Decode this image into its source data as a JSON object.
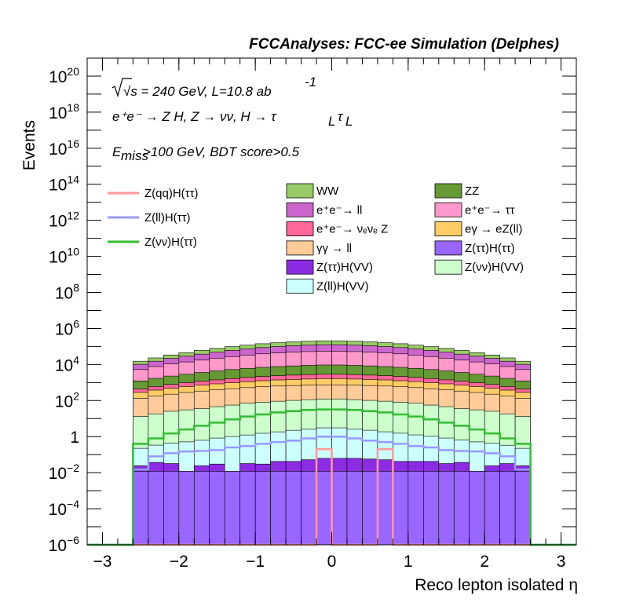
{
  "chart_data": {
    "type": "histogram",
    "title": "FCCAnalyses: FCC-ee Simulation (Delphes)",
    "annotations": {
      "energy_lumi": "√s = 240 GeV, L=10.8 ab",
      "lumi_exponent": "-1",
      "process": "e⁺e⁻ → Z H, Z → νν, H → τ",
      "tau_subscript": "L",
      "selection": "E",
      "selection_subscript": "miss",
      "selection_rest": ">100 GeV, BDT score>0.5"
    },
    "xlabel": "Reco lepton isolated η",
    "ylabel": "Events",
    "xlim": [
      -3.2,
      3.2
    ],
    "ylim": [
      1e-06,
      1e+21
    ],
    "log_y": true,
    "x_ticks": [
      -3,
      -2,
      -1,
      0,
      1,
      2,
      3
    ],
    "x_tick_labels": [
      "−3",
      "−2",
      "−1",
      "0",
      "1",
      "2",
      "3"
    ],
    "y_ticks": [
      {
        "value": 1e-06,
        "base": "10",
        "exp": "−6"
      },
      {
        "value": 0.0001,
        "base": "10",
        "exp": "−4"
      },
      {
        "value": 0.01,
        "base": "10",
        "exp": "−2"
      },
      {
        "value": 1,
        "base": "1",
        "exp": ""
      },
      {
        "value": 100.0,
        "base": "10",
        "exp": "2"
      },
      {
        "value": 10000.0,
        "base": "10",
        "exp": "4"
      },
      {
        "value": 1000000.0,
        "base": "10",
        "exp": "6"
      },
      {
        "value": 100000000.0,
        "base": "10",
        "exp": "8"
      },
      {
        "value": 10000000000.0,
        "base": "10",
        "exp": "10"
      },
      {
        "value": 1000000000000.0,
        "base": "10",
        "exp": "12"
      },
      {
        "value": 100000000000000.0,
        "base": "10",
        "exp": "14"
      },
      {
        "value": 1e+16,
        "base": "10",
        "exp": "16"
      },
      {
        "value": 1e+18,
        "base": "10",
        "exp": "18"
      },
      {
        "value": 1e+20,
        "base": "10",
        "exp": "20"
      }
    ],
    "bins": {
      "low": -2.6,
      "high": 2.6,
      "count": 26
    },
    "stack": [
      {
        "name": "Z(ττ)H(ττ)",
        "color": "#9966ff",
        "values": [
          0.012,
          0.012,
          0.012,
          0.012,
          0.012,
          0.012,
          0.012,
          0.012,
          0.012,
          0.012,
          0.012,
          0.012,
          0.012,
          0.012,
          0.012,
          0.012,
          0.012,
          0.012,
          0.012,
          0.012,
          0.012,
          0.012,
          0.012,
          0.012,
          0.012,
          0.012
        ]
      },
      {
        "name": "Z(ττ)H(VV)",
        "color": "#8b2be2",
        "values": [
          0.012,
          0.025,
          0.02,
          0.0,
          0.012,
          0.018,
          0.0,
          0.02,
          0.018,
          0.03,
          0.03,
          0.04,
          0.05,
          0.05,
          0.05,
          0.045,
          0.04,
          0.03,
          0.03,
          0.03,
          0.02,
          0.025,
          0.0,
          0.012,
          0.02,
          0.012
        ]
      },
      {
        "name": "Z(ll)H(VV)",
        "color": "#ccffff",
        "values": [
          0.2,
          0.3,
          0.4,
          0.5,
          0.6,
          0.8,
          1.0,
          1.2,
          1.5,
          1.8,
          2.2,
          2.5,
          3.0,
          3.0,
          2.5,
          2.2,
          1.8,
          1.5,
          1.2,
          1.0,
          0.8,
          0.6,
          0.5,
          0.4,
          0.3,
          0.2
        ]
      },
      {
        "name": "Z(νν)H(VV)",
        "color": "#ccffcc",
        "values": [
          13,
          18,
          25,
          30,
          35,
          45,
          55,
          70,
          80,
          90,
          100,
          110,
          120,
          120,
          110,
          100,
          90,
          80,
          70,
          55,
          45,
          35,
          30,
          25,
          18,
          13
        ]
      },
      {
        "name": "γγ → ll",
        "color": "#ffcc99",
        "values": [
          120,
          160,
          200,
          250,
          300,
          350,
          400,
          450,
          500,
          550,
          580,
          600,
          620,
          620,
          600,
          580,
          550,
          500,
          450,
          400,
          350,
          300,
          250,
          200,
          160,
          120
        ]
      },
      {
        "name": "eγ → eZ(ll)",
        "color": "#ffcc66",
        "values": [
          150,
          200,
          260,
          320,
          380,
          450,
          520,
          600,
          680,
          750,
          800,
          850,
          900,
          900,
          850,
          800,
          750,
          680,
          600,
          520,
          450,
          380,
          320,
          260,
          200,
          150
        ]
      },
      {
        "name": "e⁺e⁻→ νₑνₑ Z",
        "color": "#ff6699",
        "values": [
          150,
          220,
          300,
          380,
          460,
          560,
          680,
          800,
          900,
          1000,
          1100,
          1200,
          1250,
          1250,
          1200,
          1100,
          1000,
          900,
          800,
          680,
          560,
          460,
          380,
          300,
          220,
          150
        ]
      },
      {
        "name": "ZZ",
        "color": "#669933",
        "values": [
          800,
          1100,
          1500,
          1900,
          2400,
          3000,
          3600,
          4200,
          4800,
          5300,
          5800,
          6200,
          6500,
          6500,
          6200,
          5800,
          5300,
          4800,
          4200,
          3600,
          3000,
          2400,
          1900,
          1500,
          1100,
          800
        ]
      },
      {
        "name": "e⁺e⁻→ ττ",
        "color": "#ff99cc",
        "values": [
          4000,
          6000,
          8500,
          11000,
          14000,
          18000,
          22000,
          27000,
          32000,
          36000,
          40000,
          43000,
          45000,
          45000,
          43000,
          40000,
          36000,
          32000,
          27000,
          22000,
          18000,
          14000,
          11000,
          8500,
          6000,
          4000
        ]
      },
      {
        "name": "e⁺e⁻→ ll",
        "color": "#cc66cc",
        "values": [
          5000,
          7500,
          11000,
          15000,
          20000,
          26000,
          33000,
          40000,
          48000,
          55000,
          62000,
          68000,
          72000,
          72000,
          68000,
          62000,
          55000,
          48000,
          40000,
          33000,
          26000,
          20000,
          15000,
          11000,
          7500,
          5000
        ]
      },
      {
        "name": "WW",
        "color": "#99cc66",
        "values": [
          5000,
          8000,
          12000,
          17000,
          23000,
          30000,
          38000,
          46000,
          55000,
          63000,
          70000,
          76000,
          80000,
          80000,
          76000,
          70000,
          63000,
          55000,
          46000,
          38000,
          30000,
          23000,
          17000,
          12000,
          8000,
          5000
        ]
      }
    ],
    "signal_lines": [
      {
        "name": "Z(qq)H(ττ)",
        "color": "#ff9999",
        "values": [
          0,
          0,
          0,
          0,
          0,
          0,
          0,
          0,
          0,
          0,
          0,
          0,
          0.2,
          0,
          0,
          0,
          0.2,
          0,
          0,
          0,
          0,
          0,
          0,
          0,
          0,
          0
        ]
      },
      {
        "name": "Z(ll)H(ττ)",
        "color": "#9999ff",
        "values": [
          0.015,
          0.08,
          0.12,
          0.15,
          0.16,
          0.18,
          0.25,
          0.3,
          0.4,
          0.5,
          0.6,
          0.8,
          1.0,
          1.0,
          0.8,
          0.6,
          0.5,
          0.4,
          0.3,
          0.25,
          0.18,
          0.16,
          0.15,
          0.12,
          0.08,
          0.015
        ]
      },
      {
        "name": "Z(νν)H(ττ)",
        "color": "#33bb33",
        "values": [
          0.4,
          0.8,
          1.5,
          2.5,
          4,
          6,
          9,
          13,
          17,
          22,
          26,
          30,
          32,
          32,
          30,
          26,
          22,
          17,
          13,
          9,
          6,
          4,
          2.5,
          1.5,
          0.8,
          0.4
        ]
      }
    ],
    "legend": {
      "lines": [
        "Z(qq)H(ττ)",
        "Z(ll)H(ττ)",
        "Z(νν)H(ττ)"
      ],
      "boxes": [
        "WW",
        "ZZ",
        "e⁺e⁻→ ll",
        "e⁺e⁻→ ττ",
        "e⁺e⁻→ νₑνₑ Z",
        "eγ → eZ(ll)",
        "γγ → ll",
        "Z(ττ)H(ττ)",
        "Z(ττ)H(VV)",
        "Z(νν)H(VV)",
        "Z(ll)H(VV)"
      ],
      "placement": "top"
    }
  }
}
